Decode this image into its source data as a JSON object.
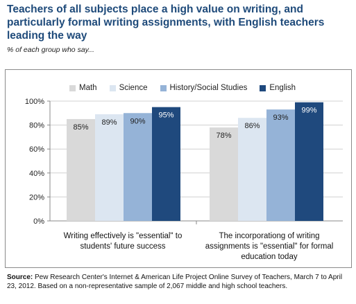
{
  "title": "Teachers of all subjects place a high value on writing, and particularly formal writing assignments, with English teachers leading the way",
  "subtitle": "% of each group who say...",
  "source_bold": "Source:",
  "source_text": "Pew Research Center's Internet & American Life Project Online Survey of Teachers, March 7 to April 23, 2012.   Based on a non-representative sample of 2,067 middle and high school teachers.",
  "chart_data": {
    "type": "bar",
    "categories": [
      "Writing effectively is \"essential\" to students' future success",
      "The incorporationg of writing assignments is \"essential\" for formal education today"
    ],
    "series": [
      {
        "name": "Math",
        "values": [
          85,
          78
        ],
        "labels": [
          "85%",
          "78%"
        ],
        "color": "#d9d9d9",
        "label_color": "#222222"
      },
      {
        "name": "Science",
        "values": [
          89,
          86
        ],
        "labels": [
          "89%",
          "86%"
        ],
        "color": "#dce6f1",
        "label_color": "#222222"
      },
      {
        "name": "History/Social Studies",
        "values": [
          90,
          93
        ],
        "labels": [
          "90%",
          "93%"
        ],
        "color": "#95b3d7",
        "label_color": "#222222"
      },
      {
        "name": "English",
        "values": [
          95,
          99
        ],
        "labels": [
          "95%",
          "99%"
        ],
        "color": "#1f497d",
        "label_color": "#ffffff"
      }
    ],
    "yticks": [
      "0%",
      "20%",
      "40%",
      "60%",
      "80%",
      "100%"
    ],
    "ylim": [
      0,
      100
    ],
    "grid": true,
    "legend": "top"
  }
}
